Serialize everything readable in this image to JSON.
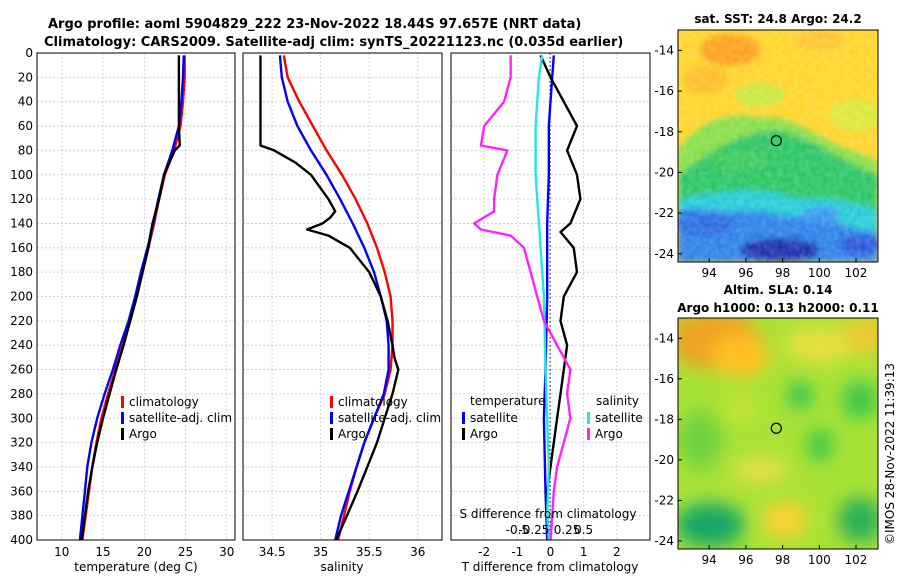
{
  "title": {
    "line1": "Argo profile: aoml 5904829_222 23-Nov-2022 18.44S 97.657E (NRT data)",
    "line2": "Climatology: CARS2009. Satellite-adj clim: synTS_20221123.nc (0.035d earlier)"
  },
  "colors": {
    "climatology": "#ff0000",
    "satellite": "#0000ff",
    "argo": "#000000",
    "sat_salinity": "#22e6e6",
    "argo_salinity": "#ff22ff",
    "dotted": "#0000aa"
  },
  "depth_ticks": [
    "0",
    "20",
    "40",
    "60",
    "80",
    "100",
    "120",
    "140",
    "160",
    "180",
    "200",
    "220",
    "240",
    "260",
    "280",
    "300",
    "320",
    "340",
    "360",
    "380",
    "400"
  ],
  "chart_data": [
    {
      "type": "line",
      "name": "temperature-profile",
      "xlabel": "temperature (deg C)",
      "ylabel": "depth",
      "xlim": [
        7,
        31
      ],
      "ylim": [
        400,
        0
      ],
      "x_ticks": [
        "10",
        "15",
        "20",
        "25",
        "30"
      ],
      "legend": {
        "position": "lower-middle",
        "items": [
          "climatology",
          "satellite-adj. clim",
          "Argo"
        ]
      },
      "series": [
        {
          "name": "climatology",
          "color": "#ff0000",
          "depth": [
            2,
            20,
            40,
            60,
            80,
            100,
            120,
            140,
            160,
            180,
            200,
            220,
            240,
            260,
            280,
            300,
            320,
            340,
            360,
            380,
            400
          ],
          "values": [
            24.9,
            24.9,
            24.7,
            24.4,
            23.6,
            22.5,
            21.8,
            21.2,
            20.5,
            19.8,
            19.1,
            18.3,
            17.4,
            16.5,
            15.6,
            14.8,
            14.2,
            13.7,
            13.3,
            12.9,
            12.5
          ]
        },
        {
          "name": "satellite-adj. clim",
          "color": "#0000ff",
          "depth": [
            2,
            20,
            40,
            60,
            80,
            100,
            120,
            140,
            160,
            180,
            200,
            220,
            240,
            260,
            280,
            300,
            320,
            340,
            360,
            380,
            400
          ],
          "values": [
            24.8,
            24.7,
            24.5,
            24.2,
            23.4,
            22.4,
            21.7,
            21.1,
            20.4,
            19.6,
            18.9,
            18.1,
            17.1,
            16.2,
            15.2,
            14.3,
            13.6,
            13.1,
            12.8,
            12.5,
            12.2
          ]
        },
        {
          "name": "Argo",
          "color": "#000000",
          "depth": [
            2,
            20,
            40,
            60,
            76,
            80,
            100,
            120,
            140,
            147,
            160,
            180,
            200,
            220,
            240,
            260,
            280,
            300,
            320,
            340,
            360,
            380,
            400
          ],
          "values": [
            24.2,
            24.2,
            24.2,
            24.2,
            24.3,
            23.7,
            22.4,
            21.8,
            21.0,
            20.8,
            20.5,
            19.8,
            19.1,
            18.3,
            17.5,
            16.6,
            15.8,
            15.0,
            14.3,
            13.7,
            13.2,
            12.8,
            12.4
          ]
        }
      ]
    },
    {
      "type": "line",
      "name": "salinity-profile",
      "xlabel": "salinity",
      "ylabel": "depth",
      "xlim": [
        34.2,
        36.25
      ],
      "ylim": [
        400,
        0
      ],
      "x_ticks": [
        "34.5",
        "35",
        "35.5",
        "36"
      ],
      "legend": {
        "position": "lower-middle",
        "items": [
          "climatology",
          "satellite-adj. clim",
          "Argo"
        ]
      },
      "series": [
        {
          "name": "climatology",
          "color": "#ff0000",
          "depth": [
            2,
            20,
            40,
            60,
            80,
            100,
            120,
            140,
            160,
            180,
            200,
            220,
            240,
            260,
            280,
            300,
            320,
            340,
            360,
            380,
            400
          ],
          "values": [
            34.62,
            34.66,
            34.78,
            34.92,
            35.06,
            35.22,
            35.36,
            35.48,
            35.58,
            35.66,
            35.72,
            35.74,
            35.74,
            35.72,
            35.66,
            35.55,
            35.45,
            35.37,
            35.3,
            35.24,
            35.18
          ]
        },
        {
          "name": "satellite-adj. clim",
          "color": "#0000ff",
          "depth": [
            2,
            20,
            40,
            60,
            80,
            100,
            120,
            140,
            160,
            180,
            200,
            220,
            240,
            260,
            280,
            300,
            320,
            340,
            360,
            380,
            400
          ],
          "values": [
            34.58,
            34.6,
            34.66,
            34.76,
            34.9,
            35.06,
            35.2,
            35.33,
            35.45,
            35.55,
            35.62,
            35.68,
            35.7,
            35.7,
            35.65,
            35.55,
            35.45,
            35.37,
            35.29,
            35.21,
            35.15
          ]
        },
        {
          "name": "Argo",
          "color": "#000000",
          "depth": [
            2,
            10,
            20,
            40,
            60,
            76,
            80,
            90,
            100,
            120,
            130,
            135,
            140,
            145,
            150,
            160,
            180,
            200,
            220,
            240,
            250,
            260,
            280,
            300,
            320,
            340,
            360,
            380,
            400
          ],
          "values": [
            34.38,
            34.38,
            34.38,
            34.38,
            34.38,
            34.38,
            34.52,
            34.74,
            34.9,
            35.08,
            35.15,
            35.1,
            35.02,
            34.86,
            35.08,
            35.3,
            35.5,
            35.62,
            35.69,
            35.74,
            35.76,
            35.8,
            35.74,
            35.66,
            35.58,
            35.48,
            35.38,
            35.27,
            35.16
          ]
        }
      ]
    },
    {
      "type": "line",
      "name": "difference-profile",
      "xlabel": "T difference from climatology",
      "x2label": "S difference from climatology",
      "ylabel": "depth",
      "xlim": [
        -3,
        3
      ],
      "ylim": [
        400,
        0
      ],
      "x_ticks": [
        "-2",
        "-1",
        "0",
        "1",
        "2"
      ],
      "x2_ticks": [
        "-0.5",
        "-0.25",
        "0.25",
        "0.5"
      ],
      "legend": {
        "temperature_header": "temperature",
        "salinity_header": "salinity",
        "temperature_items": [
          "satellite",
          "Argo"
        ],
        "salinity_items": [
          "satellite",
          "Argo"
        ]
      },
      "series": [
        {
          "name": "temperature satellite",
          "color": "#0000ff",
          "depth": [
            2,
            20,
            40,
            60,
            80,
            100,
            140,
            200,
            260,
            300,
            360,
            400
          ],
          "values": [
            0.1,
            0.05,
            0,
            -0.05,
            -0.05,
            -0.05,
            -0.1,
            -0.1,
            -0.15,
            -0.2,
            -0.15,
            -0.1
          ]
        },
        {
          "name": "temperature Argo",
          "color": "#000000",
          "depth": [
            2,
            20,
            40,
            60,
            80,
            100,
            120,
            140,
            147,
            160,
            180,
            200,
            220,
            240,
            260,
            280,
            300,
            320,
            340,
            360,
            380,
            400
          ],
          "values": [
            -0.3,
            0,
            0.4,
            0.8,
            0.5,
            0.8,
            0.9,
            0.6,
            0.3,
            0.7,
            0.8,
            0.4,
            0.3,
            0.5,
            0.4,
            0.3,
            0.2,
            0.1,
            0,
            -0.1,
            -0.1,
            -0.05
          ]
        },
        {
          "name": "salinity satellite",
          "color": "#22e6e6",
          "depth": [
            2,
            20,
            60,
            100,
            140,
            200,
            260,
            300,
            340,
            380,
            400
          ],
          "values": [
            -0.25,
            -0.35,
            -0.45,
            -0.45,
            -0.35,
            -0.2,
            -0.15,
            -0.1,
            -0.05,
            -0.1,
            -0.05
          ]
        },
        {
          "name": "salinity Argo",
          "color": "#ff22ff",
          "depth": [
            2,
            20,
            40,
            60,
            76,
            80,
            100,
            120,
            130,
            140,
            145,
            150,
            160,
            180,
            200,
            220,
            240,
            260,
            280,
            300,
            320,
            340,
            360,
            380,
            400
          ],
          "values": [
            -1.2,
            -1.2,
            -1.4,
            -2,
            -2.1,
            -1.3,
            -1.6,
            -1.7,
            -1.7,
            -2.3,
            -2.1,
            -1.2,
            -0.8,
            -0.6,
            -0.4,
            -0.2,
            0.2,
            0.6,
            0.5,
            0.6,
            0.4,
            0.2,
            0.1,
            0.05,
            0
          ]
        }
      ]
    },
    {
      "type": "heatmap",
      "name": "sst-map",
      "title": "sat. SST: 24.8 Argo: 24.2",
      "x_ticks": [
        "94",
        "96",
        "98",
        "100",
        "102"
      ],
      "y_ticks": [
        "-14",
        "-16",
        "-18",
        "-20",
        "-22",
        "-24"
      ],
      "xlim": [
        92.3,
        103.2
      ],
      "ylim": [
        -24.4,
        -13.0
      ],
      "marker": [
        97.657,
        -18.44
      ]
    },
    {
      "type": "heatmap",
      "name": "sla-map",
      "title_line1": "Altim. SLA: 0.14",
      "title_line2": "Argo h1000: 0.13 h2000: 0.11",
      "x_ticks": [
        "94",
        "96",
        "98",
        "100",
        "102"
      ],
      "y_ticks": [
        "-14",
        "-16",
        "-18",
        "-20",
        "-22",
        "-24"
      ],
      "xlim": [
        92.3,
        103.2
      ],
      "ylim": [
        -24.4,
        -13.0
      ],
      "marker": [
        97.657,
        -18.44
      ]
    }
  ],
  "watermark": "©IMOS 28-Nov-2022 11:39:13"
}
